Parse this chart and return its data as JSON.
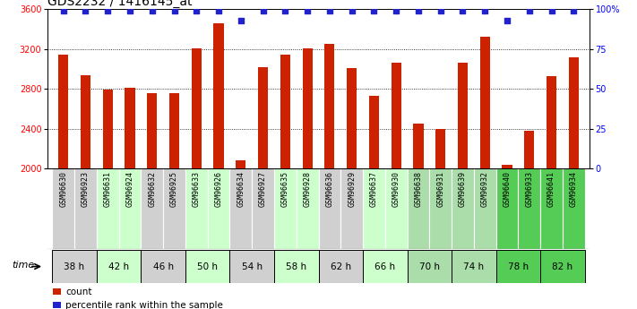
{
  "title": "GDS2232 / 1416145_at",
  "samples": [
    "GSM96630",
    "GSM96923",
    "GSM96631",
    "GSM96924",
    "GSM96632",
    "GSM96925",
    "GSM96633",
    "GSM96926",
    "GSM96634",
    "GSM96927",
    "GSM96635",
    "GSM96928",
    "GSM96636",
    "GSM96929",
    "GSM96637",
    "GSM96930",
    "GSM96638",
    "GSM96931",
    "GSM96639",
    "GSM96932",
    "GSM96640",
    "GSM96933",
    "GSM96641",
    "GSM96934"
  ],
  "counts": [
    3140,
    2940,
    2790,
    2810,
    2760,
    2760,
    3210,
    3460,
    2080,
    3020,
    3140,
    3210,
    3250,
    3010,
    2730,
    3060,
    2450,
    2400,
    3060,
    3320,
    2040,
    2380,
    2930,
    3120
  ],
  "percentile_ranks": [
    99,
    99,
    99,
    99,
    99,
    99,
    99,
    99,
    93,
    99,
    99,
    99,
    99,
    99,
    99,
    99,
    99,
    99,
    99,
    99,
    93,
    99,
    99,
    99
  ],
  "time_groups": [
    {
      "label": "38 h",
      "indices": [
        0,
        1
      ],
      "color": "#d0d0d0"
    },
    {
      "label": "42 h",
      "indices": [
        2,
        3
      ],
      "color": "#ccffcc"
    },
    {
      "label": "46 h",
      "indices": [
        4,
        5
      ],
      "color": "#d0d0d0"
    },
    {
      "label": "50 h",
      "indices": [
        6,
        7
      ],
      "color": "#ccffcc"
    },
    {
      "label": "54 h",
      "indices": [
        8,
        9
      ],
      "color": "#d0d0d0"
    },
    {
      "label": "58 h",
      "indices": [
        10,
        11
      ],
      "color": "#ccffcc"
    },
    {
      "label": "62 h",
      "indices": [
        12,
        13
      ],
      "color": "#d0d0d0"
    },
    {
      "label": "66 h",
      "indices": [
        14,
        15
      ],
      "color": "#ccffcc"
    },
    {
      "label": "70 h",
      "indices": [
        16,
        17
      ],
      "color": "#aaddaa"
    },
    {
      "label": "74 h",
      "indices": [
        18,
        19
      ],
      "color": "#aaddaa"
    },
    {
      "label": "78 h",
      "indices": [
        20,
        21
      ],
      "color": "#55cc55"
    },
    {
      "label": "82 h",
      "indices": [
        22,
        23
      ],
      "color": "#55cc55"
    }
  ],
  "ylim_left": [
    2000,
    3600
  ],
  "ylim_right": [
    0,
    100
  ],
  "yticks_left": [
    2000,
    2400,
    2800,
    3200,
    3600
  ],
  "yticks_right": [
    0,
    25,
    50,
    75,
    100
  ],
  "bar_color": "#cc2200",
  "dot_color": "#2222cc",
  "bar_width": 0.45,
  "time_label": "time",
  "legend_count_label": "count",
  "legend_pct_label": "percentile rank within the sample",
  "background_color": "#ffffff",
  "plot_bg_color": "#ffffff",
  "title_fontsize": 10,
  "tick_fontsize": 7,
  "label_fontsize": 6
}
